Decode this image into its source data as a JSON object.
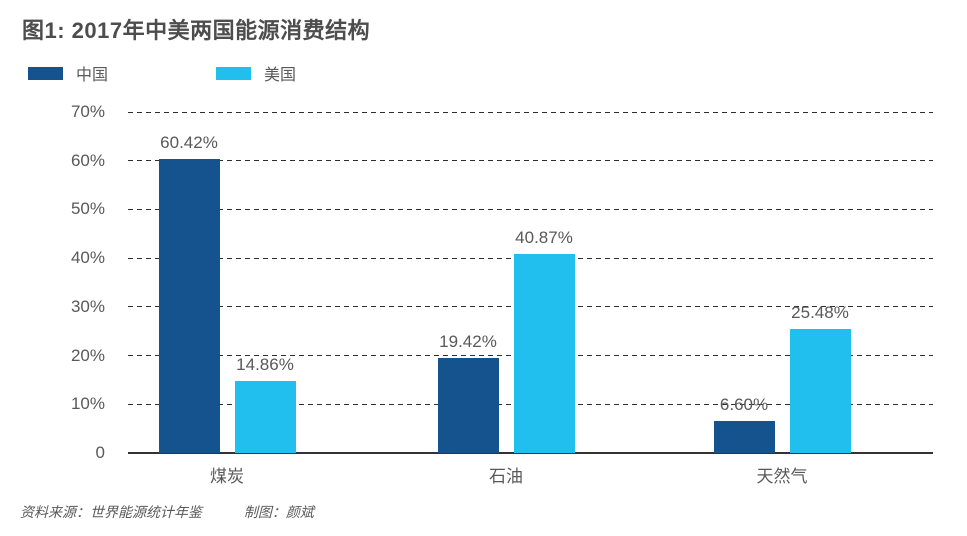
{
  "header": {
    "title": "图1: 2017年中美两国能源消费结构"
  },
  "footer": {
    "source": "资料来源：世界能源统计年鉴",
    "credit": "制图：颜斌"
  },
  "colors": {
    "china_bar": "#15538F",
    "us_bar": "#21BFEE",
    "text_gray": "#595959",
    "gridline": "#2E2E2E"
  },
  "chart_data": {
    "type": "bar",
    "title": "图1: 2017年中美两国能源消费结构",
    "categories": [
      "煤炭",
      "石油",
      "天然气"
    ],
    "series": [
      {
        "name": "中国",
        "color": "#15538F",
        "values": [
          60.42,
          19.42,
          6.6
        ],
        "labels": [
          "60.42%",
          "19.42%",
          "6.60%"
        ]
      },
      {
        "name": "美国",
        "color": "#21BFEE",
        "values": [
          14.86,
          40.87,
          25.48
        ],
        "labels": [
          "14.86%",
          "40.87%",
          "25.48%"
        ]
      }
    ],
    "yticks": [
      {
        "value": 0,
        "label": "0"
      },
      {
        "value": 10,
        "label": "10%"
      },
      {
        "value": 20,
        "label": "20%"
      },
      {
        "value": 30,
        "label": "30%"
      },
      {
        "value": 40,
        "label": "40%"
      },
      {
        "value": 50,
        "label": "50%"
      },
      {
        "value": 60,
        "label": "60%"
      },
      {
        "value": 70,
        "label": "70%"
      }
    ],
    "ylim": [
      0,
      70
    ],
    "grid": "horizontal-dashed",
    "legend_position": "top-left",
    "value_labels": true,
    "xlabel": "",
    "ylabel": ""
  }
}
